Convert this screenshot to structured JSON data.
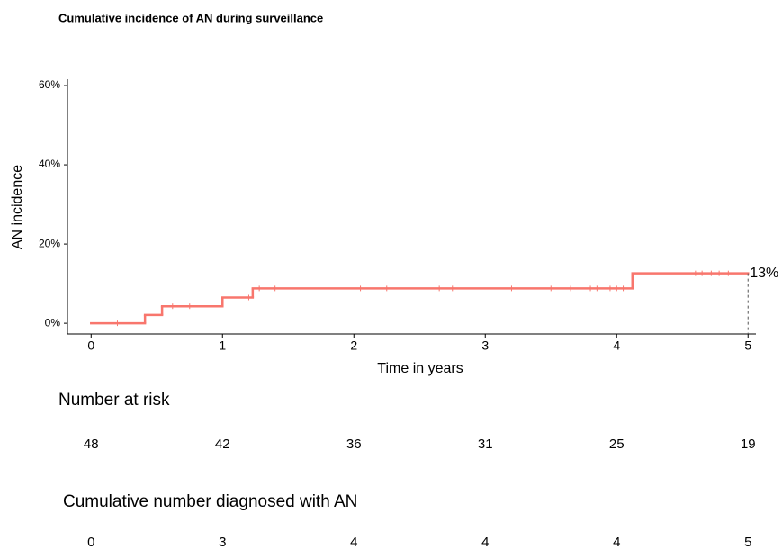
{
  "chart_data": {
    "type": "step",
    "title": "Cumulative incidence of AN during surveillance",
    "x_label": "Time in years",
    "y_label": "AN incidence",
    "x": [
      0,
      0.41,
      0.54,
      1.0,
      1.23,
      4.12,
      5
    ],
    "values": [
      0,
      2.1,
      4.3,
      6.5,
      8.8,
      12.6,
      12.6
    ],
    "color": "#f8766d",
    "censored": {
      "x": [
        0.2,
        0.62,
        0.75,
        1.2,
        1.28,
        1.4,
        2.05,
        2.25,
        2.65,
        2.75,
        3.2,
        3.5,
        3.65,
        3.8,
        3.85,
        3.95,
        4.0,
        4.05,
        4.6,
        4.65,
        4.72,
        4.78,
        4.85
      ],
      "values": [
        0,
        4.3,
        4.3,
        6.5,
        8.8,
        8.8,
        8.8,
        8.8,
        8.8,
        8.8,
        8.8,
        8.8,
        8.8,
        8.8,
        8.8,
        8.8,
        8.8,
        8.8,
        12.6,
        12.6,
        12.6,
        12.6,
        12.6
      ]
    },
    "end_label": "13%",
    "xlim": [
      -0.18,
      5.06
    ],
    "ylim": [
      -2.7,
      61.6
    ],
    "xticks": [
      0,
      1,
      2,
      3,
      4,
      5
    ],
    "yticks": [
      {
        "value": 0,
        "label": "0%"
      },
      {
        "value": 20,
        "label": "20%"
      },
      {
        "value": 40,
        "label": "40%"
      },
      {
        "value": 60,
        "label": "60%"
      }
    ],
    "grid": false
  },
  "risk_tables": [
    {
      "title": "Number at risk",
      "values": [
        48,
        42,
        36,
        31,
        25,
        19
      ]
    },
    {
      "title": "Cumulative number diagnosed with AN",
      "values": [
        0,
        3,
        4,
        4,
        4,
        5
      ]
    }
  ]
}
